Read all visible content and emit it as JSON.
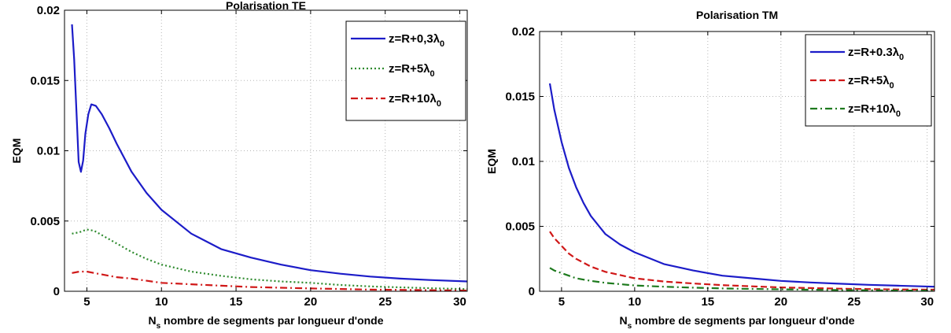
{
  "chart_data": [
    {
      "type": "line",
      "title": "Polarisation TE",
      "xlabel_main": "N",
      "xlabel_sub": "s",
      "xlabel_rest": " nombre de segments par longueur d'onde",
      "ylabel": "EQM",
      "xlim": [
        3.5,
        30.5
      ],
      "ylim": [
        0,
        0.02
      ],
      "xticks": [
        5,
        10,
        15,
        20,
        25,
        30
      ],
      "yticks": [
        0,
        0.005,
        0.01,
        0.015,
        0.02
      ],
      "ytick_labels": [
        "0",
        "0.005",
        "0.01",
        "0.015",
        "0.02"
      ],
      "grid": true,
      "legend_position": "top-right",
      "series": [
        {
          "legend_prefix": "z=R+0,3λ",
          "legend_sub": "0",
          "color": "#1c1cc8",
          "style": "solid",
          "x": [
            4.0,
            4.15,
            4.3,
            4.45,
            4.6,
            4.75,
            4.9,
            5.1,
            5.3,
            5.6,
            6,
            6.5,
            7,
            8,
            9,
            10,
            12,
            14,
            16,
            18,
            20,
            22,
            24,
            26,
            28,
            30.5
          ],
          "y": [
            0.019,
            0.0165,
            0.0128,
            0.0092,
            0.0085,
            0.0093,
            0.0112,
            0.0126,
            0.0133,
            0.0132,
            0.0126,
            0.0116,
            0.0105,
            0.0085,
            0.007,
            0.0058,
            0.0041,
            0.003,
            0.0024,
            0.0019,
            0.0015,
            0.00125,
            0.00105,
            0.0009,
            0.0008,
            0.0007
          ]
        },
        {
          "legend_prefix": "z=R+5λ",
          "legend_sub": "0",
          "color": "#2e8b2e",
          "style": "dotted",
          "x": [
            4.0,
            4.5,
            5.0,
            5.5,
            6,
            7,
            8,
            9,
            10,
            12,
            14,
            16,
            18,
            20,
            22,
            24,
            26,
            28,
            30.5
          ],
          "y": [
            0.0041,
            0.0042,
            0.0044,
            0.0043,
            0.004,
            0.0034,
            0.0028,
            0.0023,
            0.0019,
            0.0014,
            0.0011,
            0.00085,
            0.0007,
            0.0006,
            0.00045,
            0.00035,
            0.00028,
            0.00022,
            0.00015
          ]
        },
        {
          "legend_prefix": "z=R+10λ",
          "legend_sub": "0",
          "color": "#d01818",
          "style": "dashdot",
          "x": [
            4.0,
            4.5,
            5.0,
            5.5,
            6,
            7,
            8,
            10,
            12,
            14,
            16,
            18,
            20,
            22,
            24,
            26,
            28,
            30.5
          ],
          "y": [
            0.0013,
            0.0014,
            0.0014,
            0.0013,
            0.0012,
            0.001,
            0.0009,
            0.0006,
            0.0005,
            0.0004,
            0.0003,
            0.00025,
            0.0002,
            0.00016,
            0.00012,
            0.0001,
            8e-05,
            5e-05
          ]
        }
      ]
    },
    {
      "type": "line",
      "title": "Polarisation TM",
      "xlabel_main": "N",
      "xlabel_sub": "s",
      "xlabel_rest": " nombre de segments par longueur d'onde",
      "ylabel": "EQM",
      "xlim": [
        3.5,
        30.5
      ],
      "ylim": [
        0,
        0.02
      ],
      "xticks": [
        5,
        10,
        15,
        20,
        25,
        30
      ],
      "yticks": [
        0,
        0.005,
        0.01,
        0.015,
        0.02
      ],
      "ytick_labels": [
        "0",
        "0.005",
        "0.01",
        "0.015",
        "0.02"
      ],
      "grid": true,
      "legend_position": "top-right",
      "series": [
        {
          "legend_prefix": "z=R+0.3λ",
          "legend_sub": "0",
          "color": "#1c1cc8",
          "style": "solid",
          "x": [
            4.2,
            4.5,
            5,
            5.5,
            6,
            6.5,
            7,
            8,
            9,
            10,
            12,
            14,
            16,
            18,
            20,
            22,
            24,
            26,
            28,
            30.5
          ],
          "y": [
            0.016,
            0.014,
            0.0115,
            0.0095,
            0.008,
            0.0068,
            0.0058,
            0.0044,
            0.0036,
            0.003,
            0.0021,
            0.0016,
            0.0012,
            0.001,
            0.0008,
            0.00068,
            0.00058,
            0.0005,
            0.00043,
            0.00035
          ]
        },
        {
          "legend_prefix": "z=R+5λ",
          "legend_sub": "0",
          "color": "#d01818",
          "style": "dashed",
          "x": [
            4.2,
            4.5,
            5,
            5.5,
            6,
            7,
            8,
            10,
            12,
            14,
            16,
            18,
            20,
            22,
            24,
            26,
            28,
            30.5
          ],
          "y": [
            0.0046,
            0.0041,
            0.0035,
            0.0029,
            0.0025,
            0.0019,
            0.0015,
            0.001,
            0.00075,
            0.0006,
            0.00047,
            0.00038,
            0.0003,
            0.00025,
            0.0002,
            0.00017,
            0.00014,
            0.00012
          ]
        },
        {
          "legend_prefix": "z=R+10λ",
          "legend_sub": "0",
          "color": "#1e7a1e",
          "style": "dashdot",
          "x": [
            4.2,
            4.5,
            5,
            5.5,
            6,
            7,
            8,
            10,
            12,
            14,
            16,
            18,
            20,
            22,
            24,
            26,
            28,
            30.5
          ],
          "y": [
            0.0018,
            0.0016,
            0.0014,
            0.0012,
            0.001,
            0.0008,
            0.00065,
            0.00045,
            0.00035,
            0.00028,
            0.00022,
            0.00018,
            0.00015,
            0.00012,
            0.0001,
            8e-05,
            6e-05,
            5e-05
          ]
        }
      ]
    }
  ]
}
